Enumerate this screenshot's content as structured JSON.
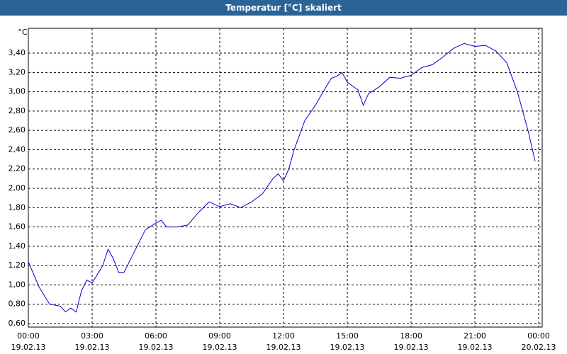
{
  "chart_data": {
    "type": "line",
    "title": "Temperatur [°C] skaliert",
    "ylabel": "°C",
    "x": [
      "2013-02-19T00:00",
      "2013-02-19T00:30",
      "2013-02-19T01:00",
      "2013-02-19T01:30",
      "2013-02-19T01:45",
      "2013-02-19T02:00",
      "2013-02-19T02:15",
      "2013-02-19T02:30",
      "2013-02-19T02:45",
      "2013-02-19T03:00",
      "2013-02-19T03:30",
      "2013-02-19T03:45",
      "2013-02-19T04:00",
      "2013-02-19T04:15",
      "2013-02-19T04:30",
      "2013-02-19T05:00",
      "2013-02-19T05:30",
      "2013-02-19T06:00",
      "2013-02-19T06:15",
      "2013-02-19T06:30",
      "2013-02-19T07:00",
      "2013-02-19T07:30",
      "2013-02-19T08:00",
      "2013-02-19T08:30",
      "2013-02-19T09:00",
      "2013-02-19T09:30",
      "2013-02-19T10:00",
      "2013-02-19T10:30",
      "2013-02-19T11:00",
      "2013-02-19T11:30",
      "2013-02-19T11:45",
      "2013-02-19T12:00",
      "2013-02-19T12:15",
      "2013-02-19T12:30",
      "2013-02-19T13:00",
      "2013-02-19T13:15",
      "2013-02-19T13:30",
      "2013-02-19T14:00",
      "2013-02-19T14:15",
      "2013-02-19T14:30",
      "2013-02-19T14:45",
      "2013-02-19T15:00",
      "2013-02-19T15:30",
      "2013-02-19T15:45",
      "2013-02-19T16:00",
      "2013-02-19T16:30",
      "2013-02-19T17:00",
      "2013-02-19T17:30",
      "2013-02-19T18:00",
      "2013-02-19T18:30",
      "2013-02-19T19:00",
      "2013-02-19T19:30",
      "2013-02-19T20:00",
      "2013-02-19T20:30",
      "2013-02-19T21:00",
      "2013-02-19T21:30",
      "2013-02-19T22:00",
      "2013-02-19T22:30",
      "2013-02-19T23:00",
      "2013-02-19T23:30",
      "2013-02-19T23:50"
    ],
    "series": [
      {
        "name": "Temperatur",
        "color": "#0000cc",
        "values": [
          1.24,
          0.98,
          0.8,
          0.78,
          0.72,
          0.76,
          0.72,
          0.94,
          1.05,
          1.02,
          1.2,
          1.37,
          1.27,
          1.13,
          1.13,
          1.35,
          1.57,
          1.64,
          1.67,
          1.6,
          1.6,
          1.62,
          1.75,
          1.86,
          1.81,
          1.84,
          1.8,
          1.86,
          1.94,
          2.1,
          2.15,
          2.08,
          2.2,
          2.4,
          2.7,
          2.78,
          2.86,
          3.05,
          3.14,
          3.16,
          3.2,
          3.1,
          3.02,
          2.86,
          2.98,
          3.05,
          3.15,
          3.14,
          3.17,
          3.25,
          3.28,
          3.36,
          3.45,
          3.5,
          3.47,
          3.48,
          3.42,
          3.3,
          3.0,
          2.6,
          2.28
        ]
      }
    ],
    "xlim": [
      "2013-02-19T00:00",
      "2013-02-20T00:10"
    ],
    "xticks": [
      {
        "value": "2013-02-19T00:00",
        "label": [
          "00:00",
          "19.02.13"
        ]
      },
      {
        "value": "2013-02-19T03:00",
        "label": [
          "03:00",
          "19.02.13"
        ]
      },
      {
        "value": "2013-02-19T06:00",
        "label": [
          "06:00",
          "19.02.13"
        ]
      },
      {
        "value": "2013-02-19T09:00",
        "label": [
          "09:00",
          "19.02.13"
        ]
      },
      {
        "value": "2013-02-19T12:00",
        "label": [
          "12:00",
          "19.02.13"
        ]
      },
      {
        "value": "2013-02-19T15:00",
        "label": [
          "15:00",
          "19.02.13"
        ]
      },
      {
        "value": "2013-02-19T18:00",
        "label": [
          "18:00",
          "19.02.13"
        ]
      },
      {
        "value": "2013-02-19T21:00",
        "label": [
          "21:00",
          "19.02.13"
        ]
      },
      {
        "value": "2013-02-20T00:00",
        "label": [
          "00:00",
          "20.02.13"
        ]
      }
    ],
    "ylim": [
      0.563,
      3.657
    ],
    "yticks": [
      {
        "value": 0.6,
        "label": "0,60"
      },
      {
        "value": 0.8,
        "label": "0,80"
      },
      {
        "value": 1.0,
        "label": "1,00"
      },
      {
        "value": 1.2,
        "label": "1,20"
      },
      {
        "value": 1.4,
        "label": "1,40"
      },
      {
        "value": 1.6,
        "label": "1,60"
      },
      {
        "value": 1.8,
        "label": "1,80"
      },
      {
        "value": 2.0,
        "label": "2,00"
      },
      {
        "value": 2.2,
        "label": "2,20"
      },
      {
        "value": 2.4,
        "label": "2,40"
      },
      {
        "value": 2.6,
        "label": "2,60"
      },
      {
        "value": 2.8,
        "label": "2,80"
      },
      {
        "value": 3.0,
        "label": "3,00"
      },
      {
        "value": 3.2,
        "label": "3,20"
      },
      {
        "value": 3.4,
        "label": "3,40"
      }
    ],
    "grid": true
  }
}
